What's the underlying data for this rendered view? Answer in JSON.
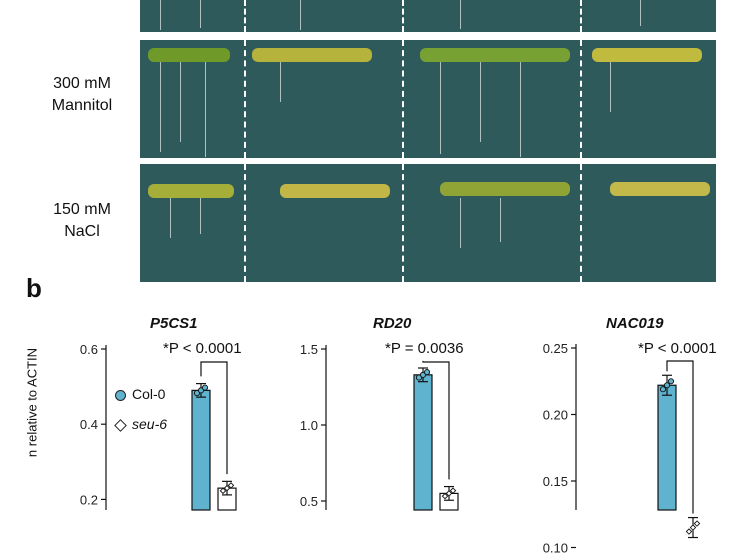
{
  "panel_a": {
    "rows": [
      {
        "label_line1": "",
        "label_line2": ""
      },
      {
        "label_line1": "300 mM",
        "label_line2": "Mannitol"
      },
      {
        "label_line1": "150 mM",
        "label_line2": "NaCl"
      }
    ]
  },
  "panel_b": {
    "letter": "b",
    "ylabel_visible": "n relative to ACTIN",
    "legend": [
      {
        "label": "Col-0",
        "color": "#5fb3cf"
      },
      {
        "label": "seu-6",
        "color": "#ffffff"
      }
    ]
  },
  "chart_data": [
    {
      "type": "bar",
      "title": "P5CS1",
      "p_value": "*P < 0.0001",
      "categories": [
        "Col-0",
        "seu-6"
      ],
      "values": [
        0.49,
        0.23
      ],
      "yticks": [
        "0.6",
        "0.4",
        "0.2"
      ],
      "ylim": [
        0.0,
        0.6
      ]
    },
    {
      "type": "bar",
      "title": "RD20",
      "p_value": "*P = 0.0036",
      "categories": [
        "Col-0",
        "seu-6"
      ],
      "values": [
        1.33,
        0.55
      ],
      "yticks": [
        "1.5",
        "1.0",
        "0.5"
      ],
      "ylim": [
        0.0,
        1.5
      ]
    },
    {
      "type": "bar",
      "title": "NAC019",
      "p_value": "*P < 0.0001",
      "categories": [
        "Col-0",
        "seu-6"
      ],
      "values": [
        0.222,
        0.115
      ],
      "yticks": [
        "0.25",
        "0.20",
        "0.15",
        "0.10"
      ],
      "ylim": [
        0.0,
        0.25
      ]
    }
  ],
  "colors": {
    "col0": "#5fb3cf",
    "seu6_fill": "#ffffff",
    "photo_bg": "#2f5a5c"
  }
}
